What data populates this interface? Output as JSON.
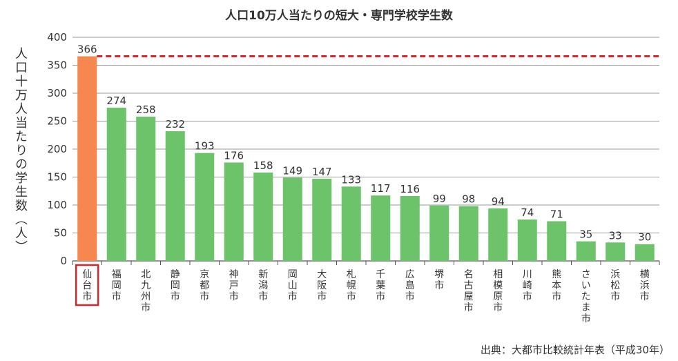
{
  "chart_data": {
    "type": "bar",
    "title": "人口10万人当たりの短大・専門学校学生数",
    "ylabel": "人口十万人当たりの学生数（人）",
    "xlabel": "",
    "ylim": [
      0,
      400
    ],
    "yticks": [
      0,
      50,
      100,
      150,
      200,
      250,
      300,
      350,
      400
    ],
    "grid": true,
    "categories": [
      "仙台市",
      "福岡市",
      "北九州市",
      "静岡市",
      "京都市",
      "神戸市",
      "新潟市",
      "岡山市",
      "大阪市",
      "札幌市",
      "千葉市",
      "広島市",
      "堺市",
      "名古屋市",
      "相模原市",
      "川崎市",
      "熊本市",
      "さいたま市",
      "浜松市",
      "横浜市"
    ],
    "values": [
      366,
      274,
      258,
      232,
      193,
      176,
      158,
      149,
      147,
      133,
      117,
      116,
      99,
      98,
      94,
      74,
      71,
      35,
      33,
      30
    ],
    "highlight_index": 0,
    "reference_line": 366,
    "colors": {
      "highlight": "#f5874f",
      "bar": "#6cc36a",
      "reference_line": "#d9242b",
      "grid": "#999999"
    },
    "source": "出典：大都市比較統計年表（平成30年）"
  }
}
